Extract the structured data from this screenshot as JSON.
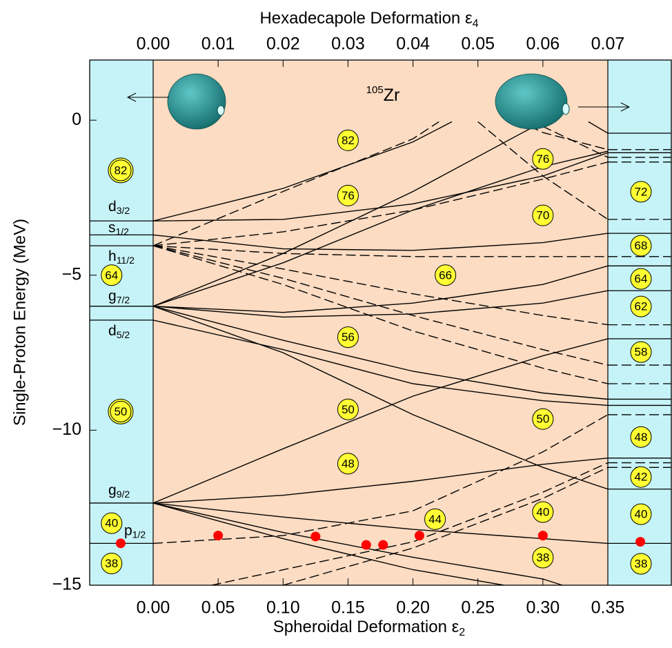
{
  "chart_data": {
    "type": "line",
    "y_label": "Single-Proton Energy (MeV)",
    "x_label": {
      "text": "Spheroidal Deformation ε",
      "sub": "2"
    },
    "x2_label": {
      "text": "Hexadecapole Deformation ε",
      "sub": "4"
    },
    "nucleus": {
      "sup": "105",
      "text": "Zr"
    },
    "xlim": [
      0,
      0.35
    ],
    "x2lim": [
      0,
      0.07
    ],
    "ylim": [
      -15,
      1.94
    ],
    "xticks": [
      {
        "value": 0,
        "label": "0.00"
      },
      {
        "value": 0.05,
        "label": "0.05"
      },
      {
        "value": 0.1,
        "label": "0.10"
      },
      {
        "value": 0.15,
        "label": "0.15"
      },
      {
        "value": 0.2,
        "label": "0.20"
      },
      {
        "value": 0.25,
        "label": "0.25"
      },
      {
        "value": 0.3,
        "label": "0.30"
      },
      {
        "value": 0.35,
        "label": "0.35"
      }
    ],
    "x2ticks": [
      {
        "value": 0,
        "label": "0.00"
      },
      {
        "value": 0.01,
        "label": "0.01"
      },
      {
        "value": 0.02,
        "label": "0.02"
      },
      {
        "value": 0.03,
        "label": "0.03"
      },
      {
        "value": 0.04,
        "label": "0.04"
      },
      {
        "value": 0.05,
        "label": "0.05"
      },
      {
        "value": 0.06,
        "label": "0.06"
      },
      {
        "value": 0.07,
        "label": "0.07"
      }
    ],
    "yticks": [
      {
        "value": -15,
        "label": "−15"
      },
      {
        "value": -10,
        "label": "−10"
      },
      {
        "value": -5,
        "label": "−5"
      },
      0
    ],
    "line_color": "#000000",
    "levels": [
      {
        "name": "d",
        "sub": "3/2",
        "energy": -3.25
      },
      {
        "name": "s",
        "sub": "1/2",
        "energy": -3.7
      },
      {
        "name": "h",
        "sub": "11/2",
        "energy": -4.05
      },
      {
        "name": "g",
        "sub": "7/2",
        "energy": -6.0
      },
      {
        "name": "d",
        "sub": "5/2",
        "energy": -6.45
      },
      {
        "name": "g",
        "sub": "9/2",
        "energy": -12.35
      },
      {
        "name": "p",
        "sub": "1/2",
        "energy": -13.65
      }
    ],
    "right_levels": {
      "solid": [
        -0.42,
        -1.05,
        -3.65,
        -4.7,
        -5.5,
        -7.05,
        -9.0,
        -9.2,
        -10.9,
        -11.9,
        -13.65
      ],
      "dashed": [
        -0.95,
        -1.2,
        -1.35,
        -3.2,
        -4.4,
        -6.6,
        -7.9,
        -8.5,
        -9.5,
        -11.05,
        -11.2
      ]
    },
    "series": [
      {
        "dashed": false,
        "x": [
          0,
          0.1,
          0.2,
          0.23
        ],
        "values": [
          -3.25,
          -2.2,
          -0.7,
          -0.05
        ]
      },
      {
        "dashed": false,
        "x": [
          0,
          0.1,
          0.2,
          0.3,
          0.35
        ],
        "values": [
          -3.25,
          -3.2,
          -2.7,
          -1.8,
          -1.05
        ]
      },
      {
        "dashed": false,
        "x": [
          0,
          0.1,
          0.2,
          0.3,
          0.35
        ],
        "values": [
          -3.7,
          -4.15,
          -4.2,
          -3.95,
          -3.65
        ]
      },
      {
        "dashed": false,
        "x": [
          0,
          0.1,
          0.2,
          0.3
        ],
        "values": [
          -6.0,
          -4.3,
          -2.3,
          -0.05
        ]
      },
      {
        "dashed": false,
        "x": [
          0,
          0.1,
          0.2,
          0.3,
          0.35
        ],
        "values": [
          -6.0,
          -4.6,
          -2.9,
          -1.5,
          -1.0
        ]
      },
      {
        "dashed": false,
        "x": [
          0,
          0.1,
          0.2,
          0.3,
          0.35
        ],
        "values": [
          -6.0,
          -6.2,
          -5.9,
          -5.3,
          -4.7
        ]
      },
      {
        "dashed": false,
        "x": [
          0,
          0.1,
          0.2,
          0.3,
          0.35
        ],
        "values": [
          -6.0,
          -6.35,
          -6.25,
          -5.9,
          -5.5
        ]
      },
      {
        "dashed": false,
        "x": [
          0,
          0.1,
          0.2,
          0.3,
          0.35
        ],
        "values": [
          -6.0,
          -7.1,
          -8.1,
          -8.8,
          -9.0
        ]
      },
      {
        "dashed": false,
        "x": [
          0,
          0.1,
          0.2,
          0.3,
          0.35
        ],
        "values": [
          -6.45,
          -7.4,
          -8.5,
          -9.05,
          -9.2
        ]
      },
      {
        "dashed": false,
        "x": [
          0,
          0.1,
          0.2,
          0.3,
          0.35
        ],
        "values": [
          -6.0,
          -7.5,
          -9.5,
          -11.2,
          -11.9
        ]
      },
      {
        "dashed": false,
        "x": [
          0,
          0.1,
          0.2,
          0.3,
          0.35
        ],
        "values": [
          -12.35,
          -10.6,
          -8.9,
          -7.6,
          -7.05
        ]
      },
      {
        "dashed": false,
        "x": [
          0,
          0.1,
          0.2,
          0.3,
          0.35
        ],
        "values": [
          -12.35,
          -12.1,
          -11.65,
          -11.1,
          -10.9
        ]
      },
      {
        "dashed": false,
        "x": [
          0,
          0.1,
          0.2,
          0.3,
          0.35
        ],
        "values": [
          -12.35,
          -12.8,
          -13.2,
          -13.5,
          -13.65
        ]
      },
      {
        "dashed": false,
        "x": [
          0,
          0.1,
          0.2,
          0.3,
          0.315
        ],
        "values": [
          -12.35,
          -13.3,
          -14.1,
          -14.8,
          -15
        ]
      },
      {
        "dashed": false,
        "x": [
          0,
          0.1,
          0.2,
          0.27
        ],
        "values": [
          -12.35,
          -13.5,
          -14.5,
          -15
        ]
      },
      {
        "dashed": false,
        "x": [
          0.335,
          0.35
        ],
        "values": [
          -0.05,
          -0.42
        ]
      },
      {
        "dashed": true,
        "x": [
          0,
          0.1,
          0.2,
          0.22
        ],
        "values": [
          -4.05,
          -2.3,
          -0.6,
          -0.05
        ]
      },
      {
        "dashed": true,
        "x": [
          0,
          0.1,
          0.2,
          0.3,
          0.35
        ],
        "values": [
          -4.05,
          -3.6,
          -2.9,
          -1.9,
          -1.35
        ]
      },
      {
        "dashed": true,
        "x": [
          0,
          0.1,
          0.2,
          0.3,
          0.35
        ],
        "values": [
          -4.05,
          -4.3,
          -4.4,
          -4.4,
          -4.4
        ]
      },
      {
        "dashed": true,
        "x": [
          0,
          0.1,
          0.2,
          0.3,
          0.35
        ],
        "values": [
          -4.05,
          -4.8,
          -5.6,
          -6.3,
          -6.6
        ]
      },
      {
        "dashed": true,
        "x": [
          0,
          0.1,
          0.2,
          0.3,
          0.35
        ],
        "values": [
          -4.05,
          -5.1,
          -6.3,
          -7.4,
          -7.9
        ]
      },
      {
        "dashed": true,
        "x": [
          0,
          0.1,
          0.2,
          0.3,
          0.35
        ],
        "values": [
          -4.05,
          -5.3,
          -6.8,
          -8.0,
          -8.5
        ]
      },
      {
        "dashed": true,
        "x": [
          0,
          0.1,
          0.2,
          0.3,
          0.35
        ],
        "values": [
          -13.65,
          -13.4,
          -12.6,
          -10.7,
          -9.5
        ]
      },
      {
        "dashed": true,
        "x": [
          0.045,
          0.2,
          0.3,
          0.35
        ],
        "values": [
          -15,
          -13.6,
          -12.0,
          -11.05
        ]
      },
      {
        "dashed": true,
        "x": [
          0.1,
          0.2,
          0.3,
          0.35
        ],
        "values": [
          -15,
          -13.8,
          -12.2,
          -11.2
        ]
      },
      {
        "dashed": true,
        "x": [
          0.25,
          0.3,
          0.35
        ],
        "values": [
          -0.05,
          -1.8,
          -3.2
        ]
      },
      {
        "dashed": true,
        "x": [
          0.28,
          0.3,
          0.35
        ],
        "values": [
          0,
          -0.4,
          -0.95
        ]
      },
      {
        "dashed": true,
        "x": [
          0.29,
          0.35
        ],
        "values": [
          0,
          -1.2
        ]
      }
    ],
    "points": {
      "color": "#ff0000",
      "x": [
        -0.025,
        0.05,
        0.125,
        0.164,
        0.177,
        0.205,
        0.3,
        0.375
      ],
      "values": [
        -13.65,
        -13.4,
        -13.43,
        -13.7,
        -13.7,
        -13.4,
        -13.4,
        -13.6
      ]
    },
    "gap_color": "#ffff33",
    "shell_gaps": [
      {
        "label": "82",
        "x": -0.025,
        "y": -1.62,
        "double": true
      },
      {
        "label": "64",
        "x": -0.032,
        "y": -5.0,
        "double": false
      },
      {
        "label": "50",
        "x": -0.025,
        "y": -9.4,
        "double": true
      },
      {
        "label": "40",
        "x": -0.032,
        "y": -13.0,
        "double": false
      },
      {
        "label": "38",
        "x": -0.032,
        "y": -14.3,
        "double": false
      },
      {
        "label": "82",
        "x": 0.15,
        "y": -0.65,
        "double": false
      },
      {
        "label": "76",
        "x": 0.15,
        "y": -2.43,
        "double": false
      },
      {
        "label": "66",
        "x": 0.225,
        "y": -5.0,
        "double": false
      },
      {
        "label": "56",
        "x": 0.15,
        "y": -7.0,
        "double": false
      },
      {
        "label": "50",
        "x": 0.15,
        "y": -9.33,
        "double": false
      },
      {
        "label": "48",
        "x": 0.15,
        "y": -11.08,
        "double": false
      },
      {
        "label": "44",
        "x": 0.217,
        "y": -12.87,
        "double": false
      },
      {
        "label": "76",
        "x": 0.3,
        "y": -1.25,
        "double": false
      },
      {
        "label": "70",
        "x": 0.3,
        "y": -3.07,
        "double": false
      },
      {
        "label": "50",
        "x": 0.3,
        "y": -9.64,
        "double": false
      },
      {
        "label": "40",
        "x": 0.3,
        "y": -12.64,
        "double": false
      },
      {
        "label": "38",
        "x": 0.3,
        "y": -14.11,
        "double": false
      },
      {
        "label": "72",
        "x": 0.3755,
        "y": -2.31,
        "double": false
      },
      {
        "label": "68",
        "x": 0.3755,
        "y": -4.05,
        "double": false
      },
      {
        "label": "64",
        "x": 0.3755,
        "y": -5.12,
        "double": false
      },
      {
        "label": "62",
        "x": 0.3755,
        "y": -6.01,
        "double": false
      },
      {
        "label": "58",
        "x": 0.3755,
        "y": -7.48,
        "double": false
      },
      {
        "label": "48",
        "x": 0.3755,
        "y": -10.22,
        "double": false
      },
      {
        "label": "42",
        "x": 0.3755,
        "y": -11.51,
        "double": false
      },
      {
        "label": "40",
        "x": 0.3755,
        "y": -12.71,
        "double": false
      },
      {
        "label": "38",
        "x": 0.3755,
        "y": -14.31,
        "double": false
      }
    ]
  }
}
